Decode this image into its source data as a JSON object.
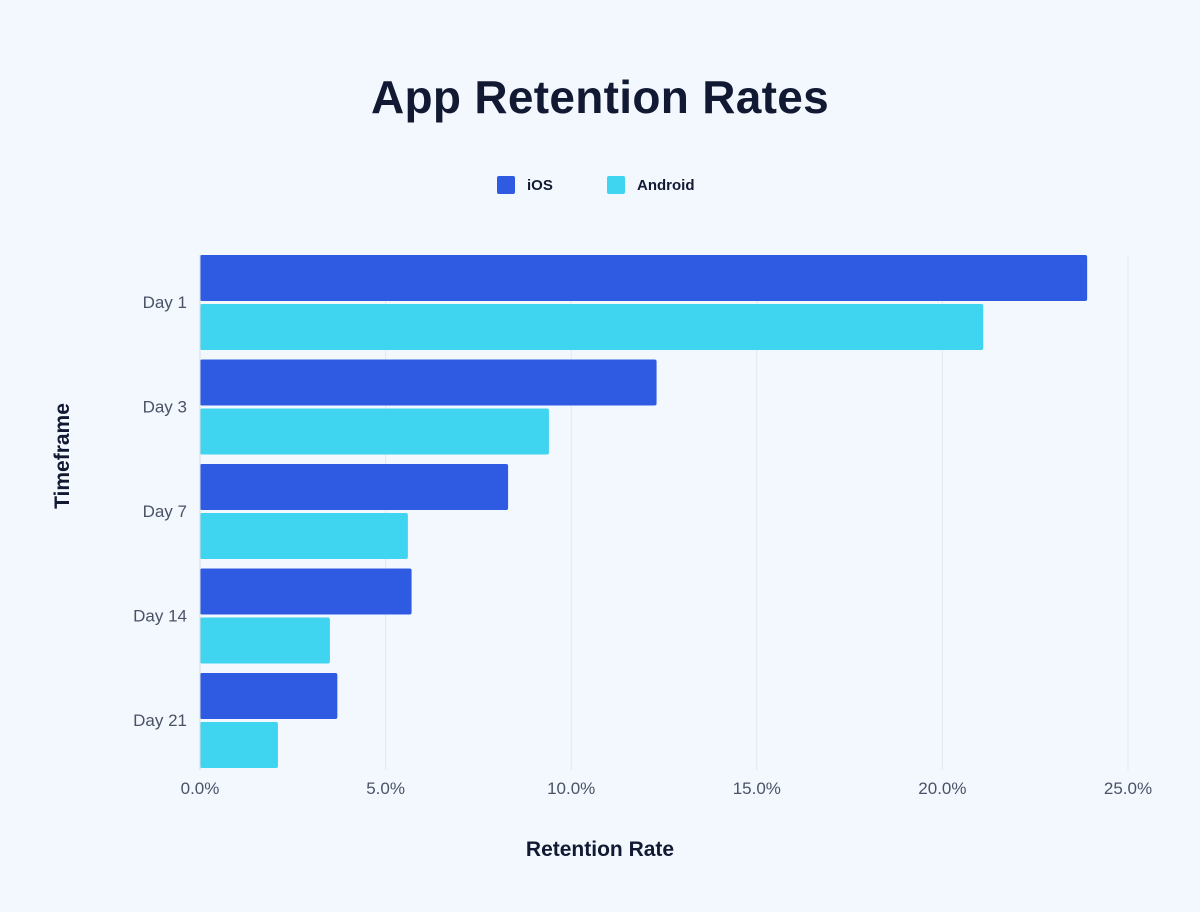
{
  "chart_data": {
    "type": "bar",
    "orientation": "horizontal",
    "title": "App Retention Rates",
    "xlabel": "Retention Rate",
    "ylabel": "Timeframe",
    "categories": [
      "Day 1",
      "Day 3",
      "Day 7",
      "Day 14",
      "Day 21"
    ],
    "series": [
      {
        "name": "iOS",
        "color": "#2f5be3",
        "values": [
          23.9,
          12.3,
          8.3,
          5.7,
          3.7
        ]
      },
      {
        "name": "Android",
        "color": "#3fd4ef",
        "values": [
          21.1,
          9.4,
          5.6,
          3.5,
          2.1
        ]
      }
    ],
    "xlim": [
      0,
      25
    ],
    "xticks": [
      0,
      5,
      10,
      15,
      20,
      25
    ],
    "xtick_labels": [
      "0.0%",
      "5.0%",
      "10.0%",
      "15.0%",
      "20.0%",
      "25.0%"
    ],
    "grid": true,
    "legend_position": "top-center"
  }
}
